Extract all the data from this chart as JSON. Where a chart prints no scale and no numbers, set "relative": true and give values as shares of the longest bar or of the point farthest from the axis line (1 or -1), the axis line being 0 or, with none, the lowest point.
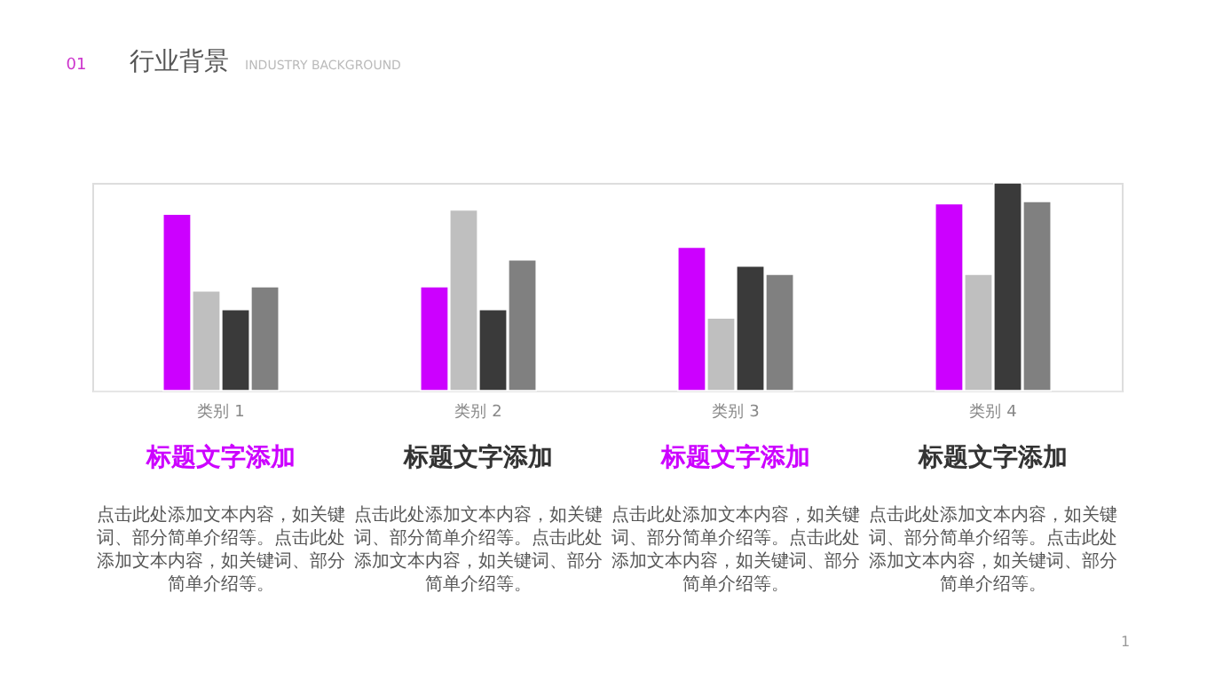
{
  "chart_data": {
    "type": "bar",
    "relative": true,
    "title": "行业背景",
    "subtitle": "INDUSTRY BACKGROUND",
    "categories": [
      "类别 1",
      "类别 2",
      "类别 3",
      "类别 4"
    ],
    "series": [
      {
        "color": "#cc00ff",
        "values": [
          0.85,
          0.5,
          0.69,
          0.9
        ]
      },
      {
        "color": "#bfbfbf",
        "values": [
          0.48,
          0.87,
          0.35,
          0.56
        ]
      },
      {
        "color": "#3a3a3a",
        "values": [
          0.39,
          0.39,
          0.6,
          1
        ]
      },
      {
        "color": "#808080",
        "values": [
          0.5,
          0.63,
          0.56,
          0.91
        ]
      }
    ],
    "annotations": [
      "01",
      "标题文字添加",
      "标题文字添加",
      "标题文字添加",
      "标题文字添加",
      "点击此处添加文本内容，如关键词、部分简单介绍等。点击此处添加文本内容，如关键词、部分简单介绍等。",
      "点击此处添加文本内容，如关键词、部分简单介绍等。点击此处添加文本内容，如关键词、部分简单介绍等。",
      "点击此处添加文本内容，如关键词、部分简单介绍等。点击此处添加文本内容，如关键词、部分简单介绍等。",
      "点击此处添加文本内容，如关键词、部分简单介绍等。点击此处添加文本内容，如关键词、部分简单介绍等。",
      "1"
    ]
  }
}
